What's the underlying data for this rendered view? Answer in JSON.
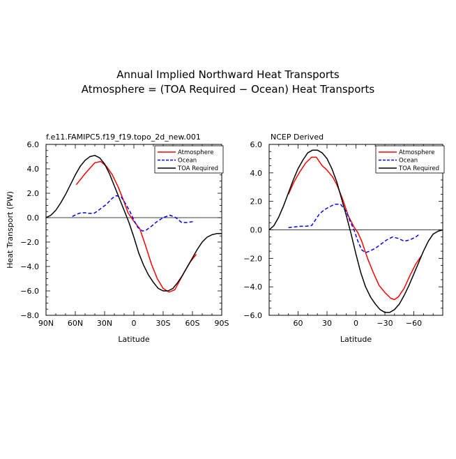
{
  "figure": {
    "title_line1": "Annual Implied Northward Heat Transports",
    "title_line2": "Atmosphere = (TOA Required − Ocean) Heat Transports"
  },
  "chart_data": [
    {
      "type": "line",
      "subtitle": "f.e11.FAMIPC5.f19_f19.topo_2d_new.001",
      "xlabel": "Latitude",
      "ylabel": "Heat Transport (PW)",
      "xlim": [
        90,
        -90
      ],
      "ylim": [
        -8,
        6
      ],
      "xticks": [
        90,
        60,
        30,
        0,
        -30,
        -60,
        -90
      ],
      "xtick_labels": [
        "90N",
        "60N",
        "30N",
        "0",
        "30S",
        "60S",
        "90S"
      ],
      "yticks": [
        6,
        4,
        2,
        0,
        -2,
        -4,
        -6,
        -8
      ],
      "ytick_labels": [
        "6.0",
        "4.0",
        "2.0",
        "0.0",
        "−2.0",
        "−4.0",
        "−6.0",
        "−8.0"
      ],
      "zero_line": true,
      "legend_position": "top-right",
      "series": [
        {
          "name": "Atmosphere",
          "color": "#ff0000",
          "dash": "solid",
          "x": [
            59,
            50,
            40,
            34,
            28,
            22,
            16,
            10,
            6,
            0,
            -6,
            -12,
            -18,
            -24,
            -30,
            -36,
            -42,
            -46,
            -52,
            -58,
            -64
          ],
          "y": [
            2.7,
            3.6,
            4.5,
            4.6,
            4.2,
            3.5,
            2.5,
            1.3,
            0.4,
            -0.3,
            -0.9,
            -2.3,
            -3.8,
            -5.0,
            -5.8,
            -6.1,
            -5.9,
            -5.3,
            -4.4,
            -3.6,
            -3.0
          ]
        },
        {
          "name": "Ocean",
          "color": "#0000ff",
          "dash": "dashed",
          "x": [
            63,
            58,
            54,
            50,
            46,
            41,
            38,
            33,
            28,
            22,
            18,
            13,
            9,
            4,
            0,
            -4,
            -9,
            -13,
            -18,
            -24,
            -30,
            -37,
            -43,
            -49,
            -55,
            -62
          ],
          "y": [
            0.1,
            0.3,
            0.4,
            0.4,
            0.35,
            0.35,
            0.5,
            0.8,
            1.1,
            1.6,
            1.8,
            1.7,
            1.2,
            0.5,
            -0.2,
            -0.8,
            -1.1,
            -1.0,
            -0.7,
            -0.3,
            0.0,
            0.2,
            0.0,
            -0.4,
            -0.4,
            -0.3
          ]
        },
        {
          "name": "TOA Required",
          "color": "#000000",
          "dash": "solid",
          "x": [
            90,
            85,
            80,
            75,
            70,
            65,
            60,
            55,
            50,
            45,
            40,
            35,
            30,
            25,
            20,
            15,
            10,
            5,
            0,
            -5,
            -10,
            -15,
            -20,
            -25,
            -30,
            -35,
            -40,
            -45,
            -50,
            -55,
            -60,
            -65,
            -70,
            -75,
            -80,
            -85,
            -90
          ],
          "y": [
            0.0,
            0.2,
            0.6,
            1.2,
            1.9,
            2.7,
            3.5,
            4.2,
            4.7,
            5.0,
            5.1,
            4.9,
            4.4,
            3.6,
            2.6,
            1.6,
            0.6,
            -0.4,
            -1.6,
            -2.9,
            -3.9,
            -4.7,
            -5.3,
            -5.8,
            -6.0,
            -6.0,
            -5.8,
            -5.3,
            -4.7,
            -4.0,
            -3.3,
            -2.6,
            -2.0,
            -1.6,
            -1.4,
            -1.3,
            -1.3
          ]
        }
      ]
    },
    {
      "type": "line",
      "subtitle": "NCEP Derived",
      "xlabel": "Latitude",
      "ylabel": "",
      "xlim": [
        90,
        -90
      ],
      "ylim": [
        -6,
        6
      ],
      "xticks": [
        60,
        30,
        0,
        -30,
        -60
      ],
      "xtick_labels": [
        "60",
        "30",
        "0",
        "−30",
        "−60"
      ],
      "yticks": [
        6,
        4,
        2,
        0,
        -2,
        -4,
        -6
      ],
      "ytick_labels": [
        "6.0",
        "4.0",
        "2.0",
        "0.0",
        "−2.0",
        "−4.0",
        "−6.0"
      ],
      "zero_line": true,
      "legend_position": "top-right",
      "series": [
        {
          "name": "Atmosphere",
          "color": "#ff0000",
          "dash": "solid",
          "x": [
            70,
            64,
            58,
            52,
            46,
            41,
            38,
            35,
            30,
            24,
            20,
            14,
            8,
            2,
            -2,
            -6,
            -12,
            -18,
            -24,
            -30,
            -36,
            -40,
            -44,
            -50,
            -56,
            -62,
            -68
          ],
          "y": [
            2.5,
            3.4,
            4.1,
            4.7,
            5.1,
            5.1,
            4.8,
            4.5,
            4.2,
            3.7,
            3.2,
            2.2,
            1.0,
            0.2,
            -0.2,
            -0.8,
            -2.0,
            -3.0,
            -3.9,
            -4.4,
            -4.8,
            -4.9,
            -4.7,
            -4.1,
            -3.2,
            -2.4,
            -1.8
          ]
        },
        {
          "name": "Ocean",
          "color": "#0000ff",
          "dash": "dashed",
          "x": [
            70,
            64,
            58,
            52,
            46,
            42,
            38,
            33,
            28,
            22,
            16,
            10,
            6,
            2,
            -2,
            -6,
            -10,
            -14,
            -20,
            -26,
            -32,
            -38,
            -44,
            -50,
            -56,
            -62,
            -66
          ],
          "y": [
            0.15,
            0.2,
            0.25,
            0.25,
            0.3,
            0.7,
            1.1,
            1.4,
            1.6,
            1.8,
            1.8,
            1.3,
            0.6,
            0.0,
            -0.8,
            -1.4,
            -1.6,
            -1.5,
            -1.3,
            -1.0,
            -0.7,
            -0.5,
            -0.6,
            -0.8,
            -0.7,
            -0.5,
            -0.3
          ]
        },
        {
          "name": "TOA Required",
          "color": "#000000",
          "dash": "solid",
          "x": [
            90,
            85,
            80,
            75,
            70,
            65,
            60,
            55,
            50,
            45,
            40,
            35,
            30,
            25,
            20,
            15,
            10,
            5,
            0,
            -5,
            -10,
            -15,
            -20,
            -25,
            -30,
            -35,
            -40,
            -45,
            -50,
            -55,
            -60,
            -65,
            -70,
            -75,
            -80,
            -85,
            -90
          ],
          "y": [
            0.0,
            0.3,
            0.9,
            1.7,
            2.6,
            3.5,
            4.3,
            4.9,
            5.4,
            5.6,
            5.6,
            5.4,
            5.0,
            4.3,
            3.4,
            2.2,
            1.0,
            -0.3,
            -1.7,
            -3.0,
            -4.0,
            -4.7,
            -5.2,
            -5.6,
            -5.8,
            -5.8,
            -5.6,
            -5.2,
            -4.6,
            -3.9,
            -3.1,
            -2.3,
            -1.5,
            -0.8,
            -0.3,
            -0.1,
            0.0
          ]
        }
      ]
    }
  ]
}
